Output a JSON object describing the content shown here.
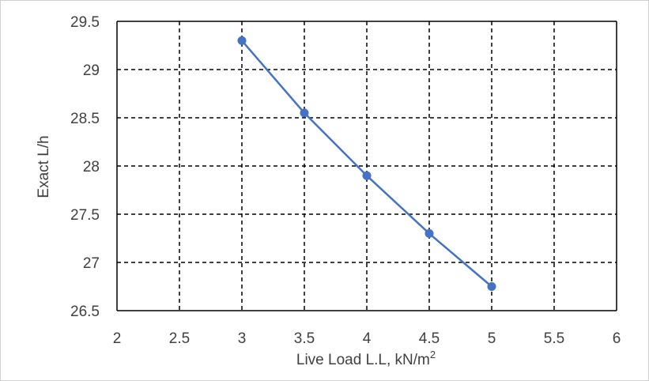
{
  "chart_data": {
    "type": "line",
    "title": "",
    "xlabel": "Live Load L.L,  kN/m",
    "xlabel_superscript": "2",
    "ylabel": "Exact L/h",
    "xlim": [
      2,
      6
    ],
    "ylim": [
      26.5,
      29.5
    ],
    "x_ticks": [
      "2",
      "2.5",
      "3",
      "3.5",
      "4",
      "4.5",
      "5",
      "5.5",
      "6"
    ],
    "y_ticks": [
      "26.5",
      "27",
      "27.5",
      "28",
      "28.5",
      "29",
      "29.5"
    ],
    "grid": true,
    "grid_style": "dashed",
    "legend": "none",
    "series": [
      {
        "x": [
          3,
          3.5,
          4,
          4.5,
          5
        ],
        "values": [
          29.3,
          28.55,
          27.9,
          27.3,
          26.75
        ],
        "color": "#4472C4"
      }
    ]
  }
}
